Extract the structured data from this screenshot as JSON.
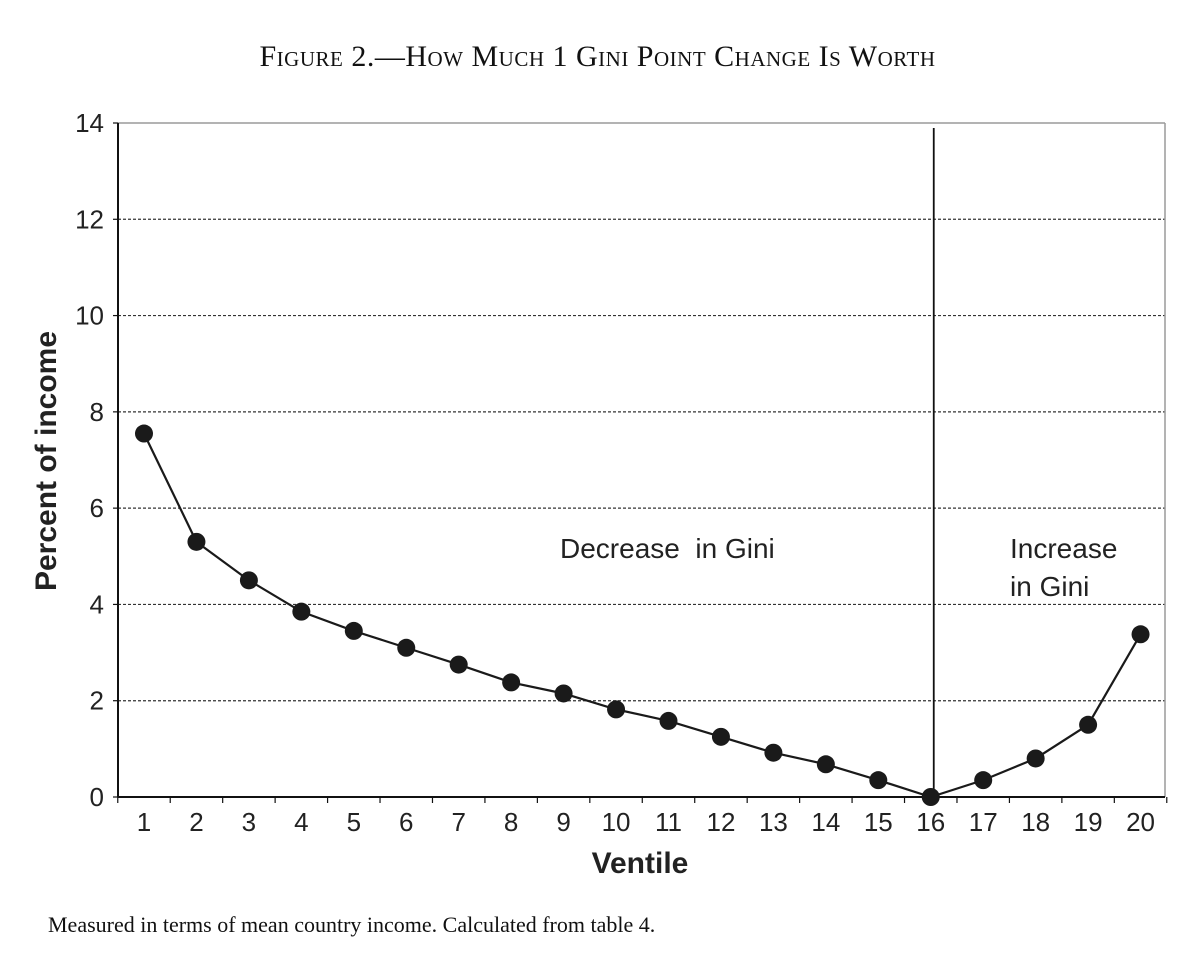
{
  "figure": {
    "title": "Figure 2.—How Much 1 Gini Point Change Is Worth",
    "caption": "Measured in terms of mean country income. Calculated from table 4."
  },
  "chart_data": {
    "type": "line",
    "title": "Figure 2.—How Much 1 Gini Point Change Is Worth",
    "xlabel": "Ventile",
    "ylabel": "Percent of income",
    "x": [
      1,
      2,
      3,
      4,
      5,
      6,
      7,
      8,
      9,
      10,
      11,
      12,
      13,
      14,
      15,
      16,
      17,
      18,
      19,
      20
    ],
    "xticks": [
      "1",
      "2",
      "3",
      "4",
      "5",
      "6",
      "7",
      "8",
      "9",
      "10",
      "11",
      "12",
      "13",
      "14",
      "15",
      "16",
      "17",
      "18",
      "19",
      "20"
    ],
    "series": [
      {
        "values": [
          7.55,
          5.3,
          4.5,
          3.85,
          3.45,
          3.1,
          2.75,
          2.38,
          2.15,
          1.82,
          1.58,
          1.25,
          0.92,
          0.68,
          0.35,
          0.0,
          0.35,
          0.8,
          1.5,
          3.38
        ]
      }
    ],
    "ylim": [
      0,
      14
    ],
    "yticks": [
      "0",
      "2",
      "4",
      "6",
      "8",
      "10",
      "12",
      "14"
    ],
    "grid": "dashed horizontal",
    "divider_x": 16,
    "annotations": {
      "decrease": "Decrease  in Gini",
      "increase_line1": "Increase",
      "increase_line2": "in Gini"
    },
    "colors": {
      "line": "#1a1a1a",
      "marker": "#1a1a1a",
      "grid": "#333333",
      "frame": "#9a9a9a"
    }
  }
}
